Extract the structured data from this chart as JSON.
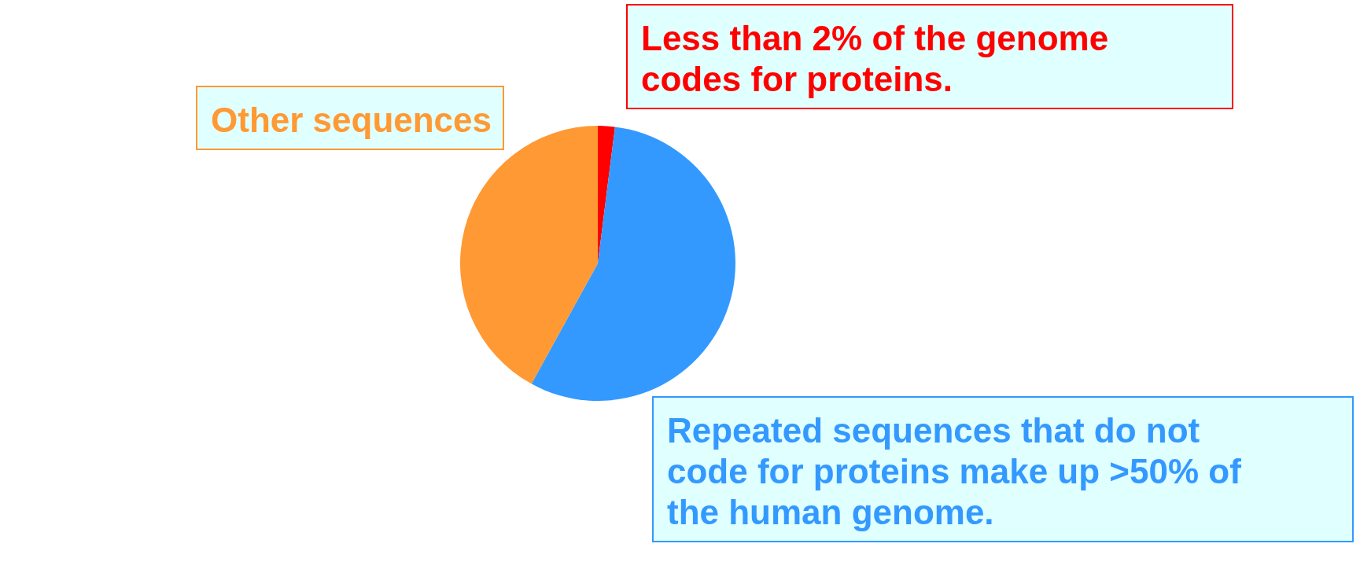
{
  "chart_data": {
    "type": "pie",
    "categories": [
      "Less than 2% of the genome codes for proteins.",
      "Repeated sequences that do not code for proteins make up >50% of the human genome.",
      "Other sequences"
    ],
    "values": [
      2,
      56,
      42
    ],
    "colors": [
      "#ff0000",
      "#3399ff",
      "#ff9933"
    ],
    "legend": false
  }
}
